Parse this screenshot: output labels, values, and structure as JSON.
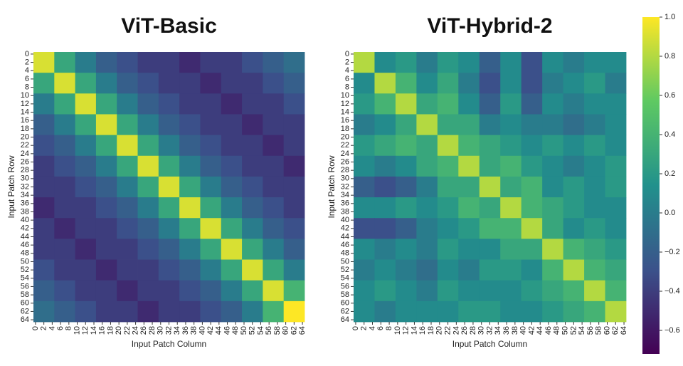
{
  "chart_data": [
    {
      "type": "heatmap",
      "title": "ViT-Basic",
      "xlabel": "Input Patch Column",
      "ylabel": "Input Patch Row",
      "xlim": [
        -0.5,
        64.5
      ],
      "ylim": [
        -0.5,
        64.5
      ],
      "xticks": [
        0,
        2,
        4,
        6,
        8,
        10,
        12,
        14,
        16,
        18,
        20,
        22,
        24,
        26,
        28,
        30,
        32,
        34,
        36,
        38,
        40,
        42,
        44,
        46,
        48,
        50,
        52,
        54,
        56,
        58,
        60,
        62,
        64
      ],
      "yticks": [
        0,
        2,
        4,
        6,
        8,
        10,
        12,
        14,
        16,
        18,
        20,
        22,
        24,
        26,
        28,
        30,
        32,
        34,
        36,
        38,
        40,
        42,
        44,
        46,
        48,
        50,
        52,
        54,
        56,
        58,
        60,
        62,
        64
      ],
      "matrix": [
        [
          0.9,
          0.3,
          0.0,
          -0.2,
          -0.3,
          -0.4,
          -0.4,
          -0.5,
          -0.4,
          -0.4,
          -0.3,
          -0.2,
          -0.1
        ],
        [
          0.3,
          0.9,
          0.3,
          0.0,
          -0.2,
          -0.3,
          -0.4,
          -0.4,
          -0.5,
          -0.4,
          -0.4,
          -0.3,
          -0.2
        ],
        [
          0.0,
          0.3,
          0.9,
          0.3,
          0.0,
          -0.2,
          -0.3,
          -0.4,
          -0.4,
          -0.5,
          -0.4,
          -0.4,
          -0.3
        ],
        [
          -0.2,
          0.0,
          0.3,
          0.9,
          0.3,
          0.0,
          -0.2,
          -0.3,
          -0.4,
          -0.4,
          -0.5,
          -0.4,
          -0.4
        ],
        [
          -0.3,
          -0.2,
          0.0,
          0.3,
          0.9,
          0.3,
          0.0,
          -0.2,
          -0.3,
          -0.4,
          -0.4,
          -0.5,
          -0.4
        ],
        [
          -0.4,
          -0.3,
          -0.2,
          0.0,
          0.3,
          0.9,
          0.3,
          0.0,
          -0.2,
          -0.3,
          -0.4,
          -0.4,
          -0.5
        ],
        [
          -0.4,
          -0.4,
          -0.3,
          -0.2,
          0.0,
          0.3,
          0.9,
          0.3,
          0.0,
          -0.2,
          -0.3,
          -0.4,
          -0.4
        ],
        [
          -0.5,
          -0.4,
          -0.4,
          -0.3,
          -0.2,
          0.0,
          0.3,
          0.9,
          0.3,
          0.0,
          -0.2,
          -0.3,
          -0.4
        ],
        [
          -0.4,
          -0.5,
          -0.4,
          -0.4,
          -0.3,
          -0.2,
          0.0,
          0.3,
          0.9,
          0.3,
          0.0,
          -0.2,
          -0.3
        ],
        [
          -0.4,
          -0.4,
          -0.5,
          -0.4,
          -0.4,
          -0.3,
          -0.2,
          0.0,
          0.3,
          0.9,
          0.3,
          0.0,
          -0.2
        ],
        [
          -0.3,
          -0.4,
          -0.4,
          -0.5,
          -0.4,
          -0.4,
          -0.3,
          -0.2,
          0.0,
          0.3,
          0.9,
          0.3,
          0.0
        ],
        [
          -0.2,
          -0.3,
          -0.4,
          -0.4,
          -0.5,
          -0.4,
          -0.4,
          -0.3,
          -0.2,
          0.0,
          0.3,
          0.9,
          0.4
        ],
        [
          -0.1,
          -0.2,
          -0.3,
          -0.4,
          -0.4,
          -0.5,
          -0.4,
          -0.4,
          -0.3,
          -0.2,
          0.0,
          0.4,
          1.0
        ]
      ]
    },
    {
      "type": "heatmap",
      "title": "ViT-Hybrid-2",
      "xlabel": "Input Patch Column",
      "ylabel": "Input Patch Row",
      "xlim": [
        -0.5,
        64.5
      ],
      "ylim": [
        -0.5,
        64.5
      ],
      "xticks": [
        0,
        2,
        4,
        6,
        8,
        10,
        12,
        14,
        16,
        18,
        20,
        22,
        24,
        26,
        28,
        30,
        32,
        34,
        36,
        38,
        40,
        42,
        44,
        46,
        48,
        50,
        52,
        54,
        56,
        58,
        60,
        62,
        64
      ],
      "yticks": [
        0,
        2,
        4,
        6,
        8,
        10,
        12,
        14,
        16,
        18,
        20,
        22,
        24,
        26,
        28,
        30,
        32,
        34,
        36,
        38,
        40,
        42,
        44,
        46,
        48,
        50,
        52,
        54,
        56,
        58,
        60,
        62,
        64
      ],
      "matrix": [
        [
          0.8,
          0.1,
          0.2,
          0.0,
          0.2,
          0.1,
          -0.2,
          0.1,
          -0.3,
          0.1,
          0.0,
          0.1,
          0.1
        ],
        [
          0.1,
          0.8,
          0.4,
          0.1,
          0.3,
          0.0,
          -0.3,
          0.1,
          -0.3,
          0.0,
          0.1,
          0.2,
          0.0
        ],
        [
          0.2,
          0.4,
          0.8,
          0.3,
          0.4,
          0.1,
          -0.2,
          0.2,
          -0.2,
          0.1,
          0.0,
          0.1,
          0.1
        ],
        [
          0.0,
          0.1,
          0.3,
          0.8,
          0.3,
          0.3,
          0.0,
          0.1,
          0.0,
          0.0,
          -0.1,
          0.0,
          0.1
        ],
        [
          0.2,
          0.3,
          0.4,
          0.3,
          0.8,
          0.4,
          0.3,
          0.2,
          0.1,
          0.2,
          0.1,
          0.2,
          0.1
        ],
        [
          0.1,
          0.0,
          0.1,
          0.3,
          0.4,
          0.8,
          0.3,
          0.4,
          0.2,
          0.1,
          0.0,
          0.1,
          0.2
        ],
        [
          -0.2,
          -0.3,
          -0.2,
          0.0,
          0.3,
          0.3,
          0.8,
          0.3,
          0.4,
          0.1,
          0.2,
          0.1,
          0.2
        ],
        [
          0.1,
          0.1,
          0.2,
          0.1,
          0.2,
          0.4,
          0.3,
          0.8,
          0.4,
          0.3,
          0.2,
          0.1,
          0.1
        ],
        [
          -0.3,
          -0.3,
          -0.2,
          0.0,
          0.1,
          0.2,
          0.4,
          0.4,
          0.8,
          0.3,
          0.1,
          0.2,
          0.1
        ],
        [
          0.1,
          0.0,
          0.1,
          0.0,
          0.2,
          0.1,
          0.1,
          0.3,
          0.3,
          0.8,
          0.4,
          0.3,
          0.2
        ],
        [
          0.0,
          0.1,
          0.0,
          -0.1,
          0.1,
          0.0,
          0.2,
          0.2,
          0.1,
          0.4,
          0.8,
          0.4,
          0.3
        ],
        [
          0.1,
          0.2,
          0.1,
          0.0,
          0.2,
          0.1,
          0.1,
          0.1,
          0.2,
          0.3,
          0.4,
          0.8,
          0.4
        ],
        [
          0.1,
          0.0,
          0.1,
          0.1,
          0.1,
          0.2,
          0.2,
          0.1,
          0.1,
          0.2,
          0.3,
          0.4,
          0.8
        ]
      ]
    }
  ],
  "colorbar": {
    "colormap": "viridis",
    "zlim": [
      -0.72,
      1.0
    ],
    "zticks": [
      {
        "value": 1.0,
        "label": "1.0"
      },
      0.8,
      0.6,
      0.4,
      0.2,
      {
        "value": 0,
        "label": "0.0"
      },
      {
        "value": -0.2,
        "label": "−0.2"
      },
      {
        "value": -0.4,
        "label": "−0.4"
      },
      {
        "value": -0.6,
        "label": "−0.6"
      }
    ]
  }
}
